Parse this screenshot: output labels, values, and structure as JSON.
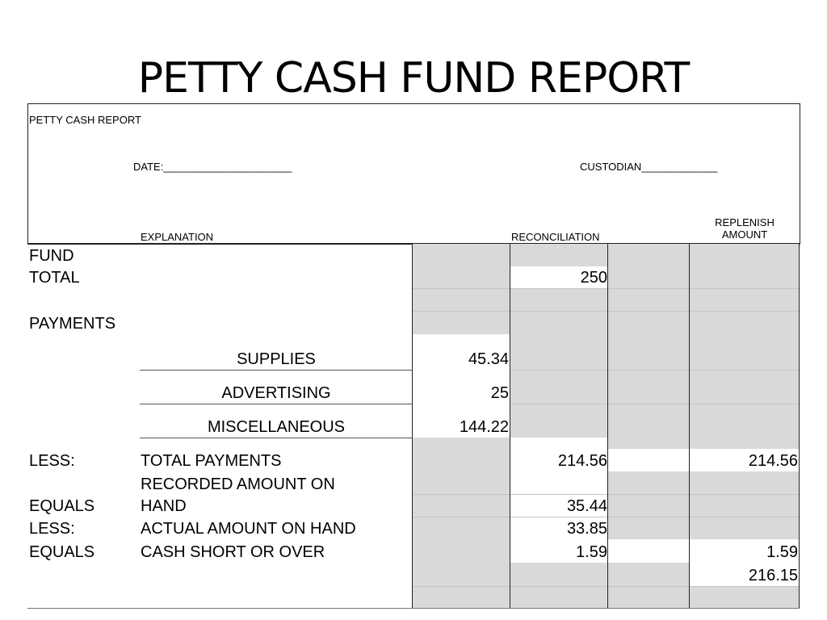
{
  "title": "PETTY CASH FUND REPORT",
  "header": {
    "report_label": "PETTY CASH REPORT",
    "date_label": "DATE:______________________",
    "custodian_label": "CUSTODIAN_____________",
    "explanation_label": "EXPLANATION",
    "reconciliation_label": "RECONCILIATION",
    "replenish_line1": "REPLENISH",
    "replenish_line2": "AMOUNT"
  },
  "rows": {
    "fund": {
      "label": "FUND"
    },
    "total": {
      "label": "TOTAL",
      "value": "250"
    },
    "payments": {
      "label": "PAYMENTS"
    },
    "supplies": {
      "label": "SUPPLIES",
      "value": "45.34"
    },
    "advertising": {
      "label": "ADVERTISING",
      "value": "25"
    },
    "misc": {
      "label": "MISCELLANEOUS",
      "value": "144.22"
    },
    "less1": {
      "prefix": "LESS:",
      "label": "TOTAL PAYMENTS",
      "reconciliation": "214.56",
      "replenish": "214.56"
    },
    "equals1": {
      "prefix": "EQUALS",
      "label_line1": "RECORDED AMOUNT ON",
      "label_line2": "HAND",
      "reconciliation": "35.44"
    },
    "less2": {
      "prefix": "LESS:",
      "label": "ACTUAL AMOUNT ON HAND",
      "reconciliation": "33.85"
    },
    "equals2": {
      "prefix": "EQUALS",
      "label": "CASH SHORT OR OVER",
      "reconciliation": "1.59",
      "replenish": "1.59"
    },
    "grand_total": {
      "replenish": "216.15"
    }
  },
  "colors": {
    "shade": "#d9d9d9",
    "border": "#222222"
  }
}
